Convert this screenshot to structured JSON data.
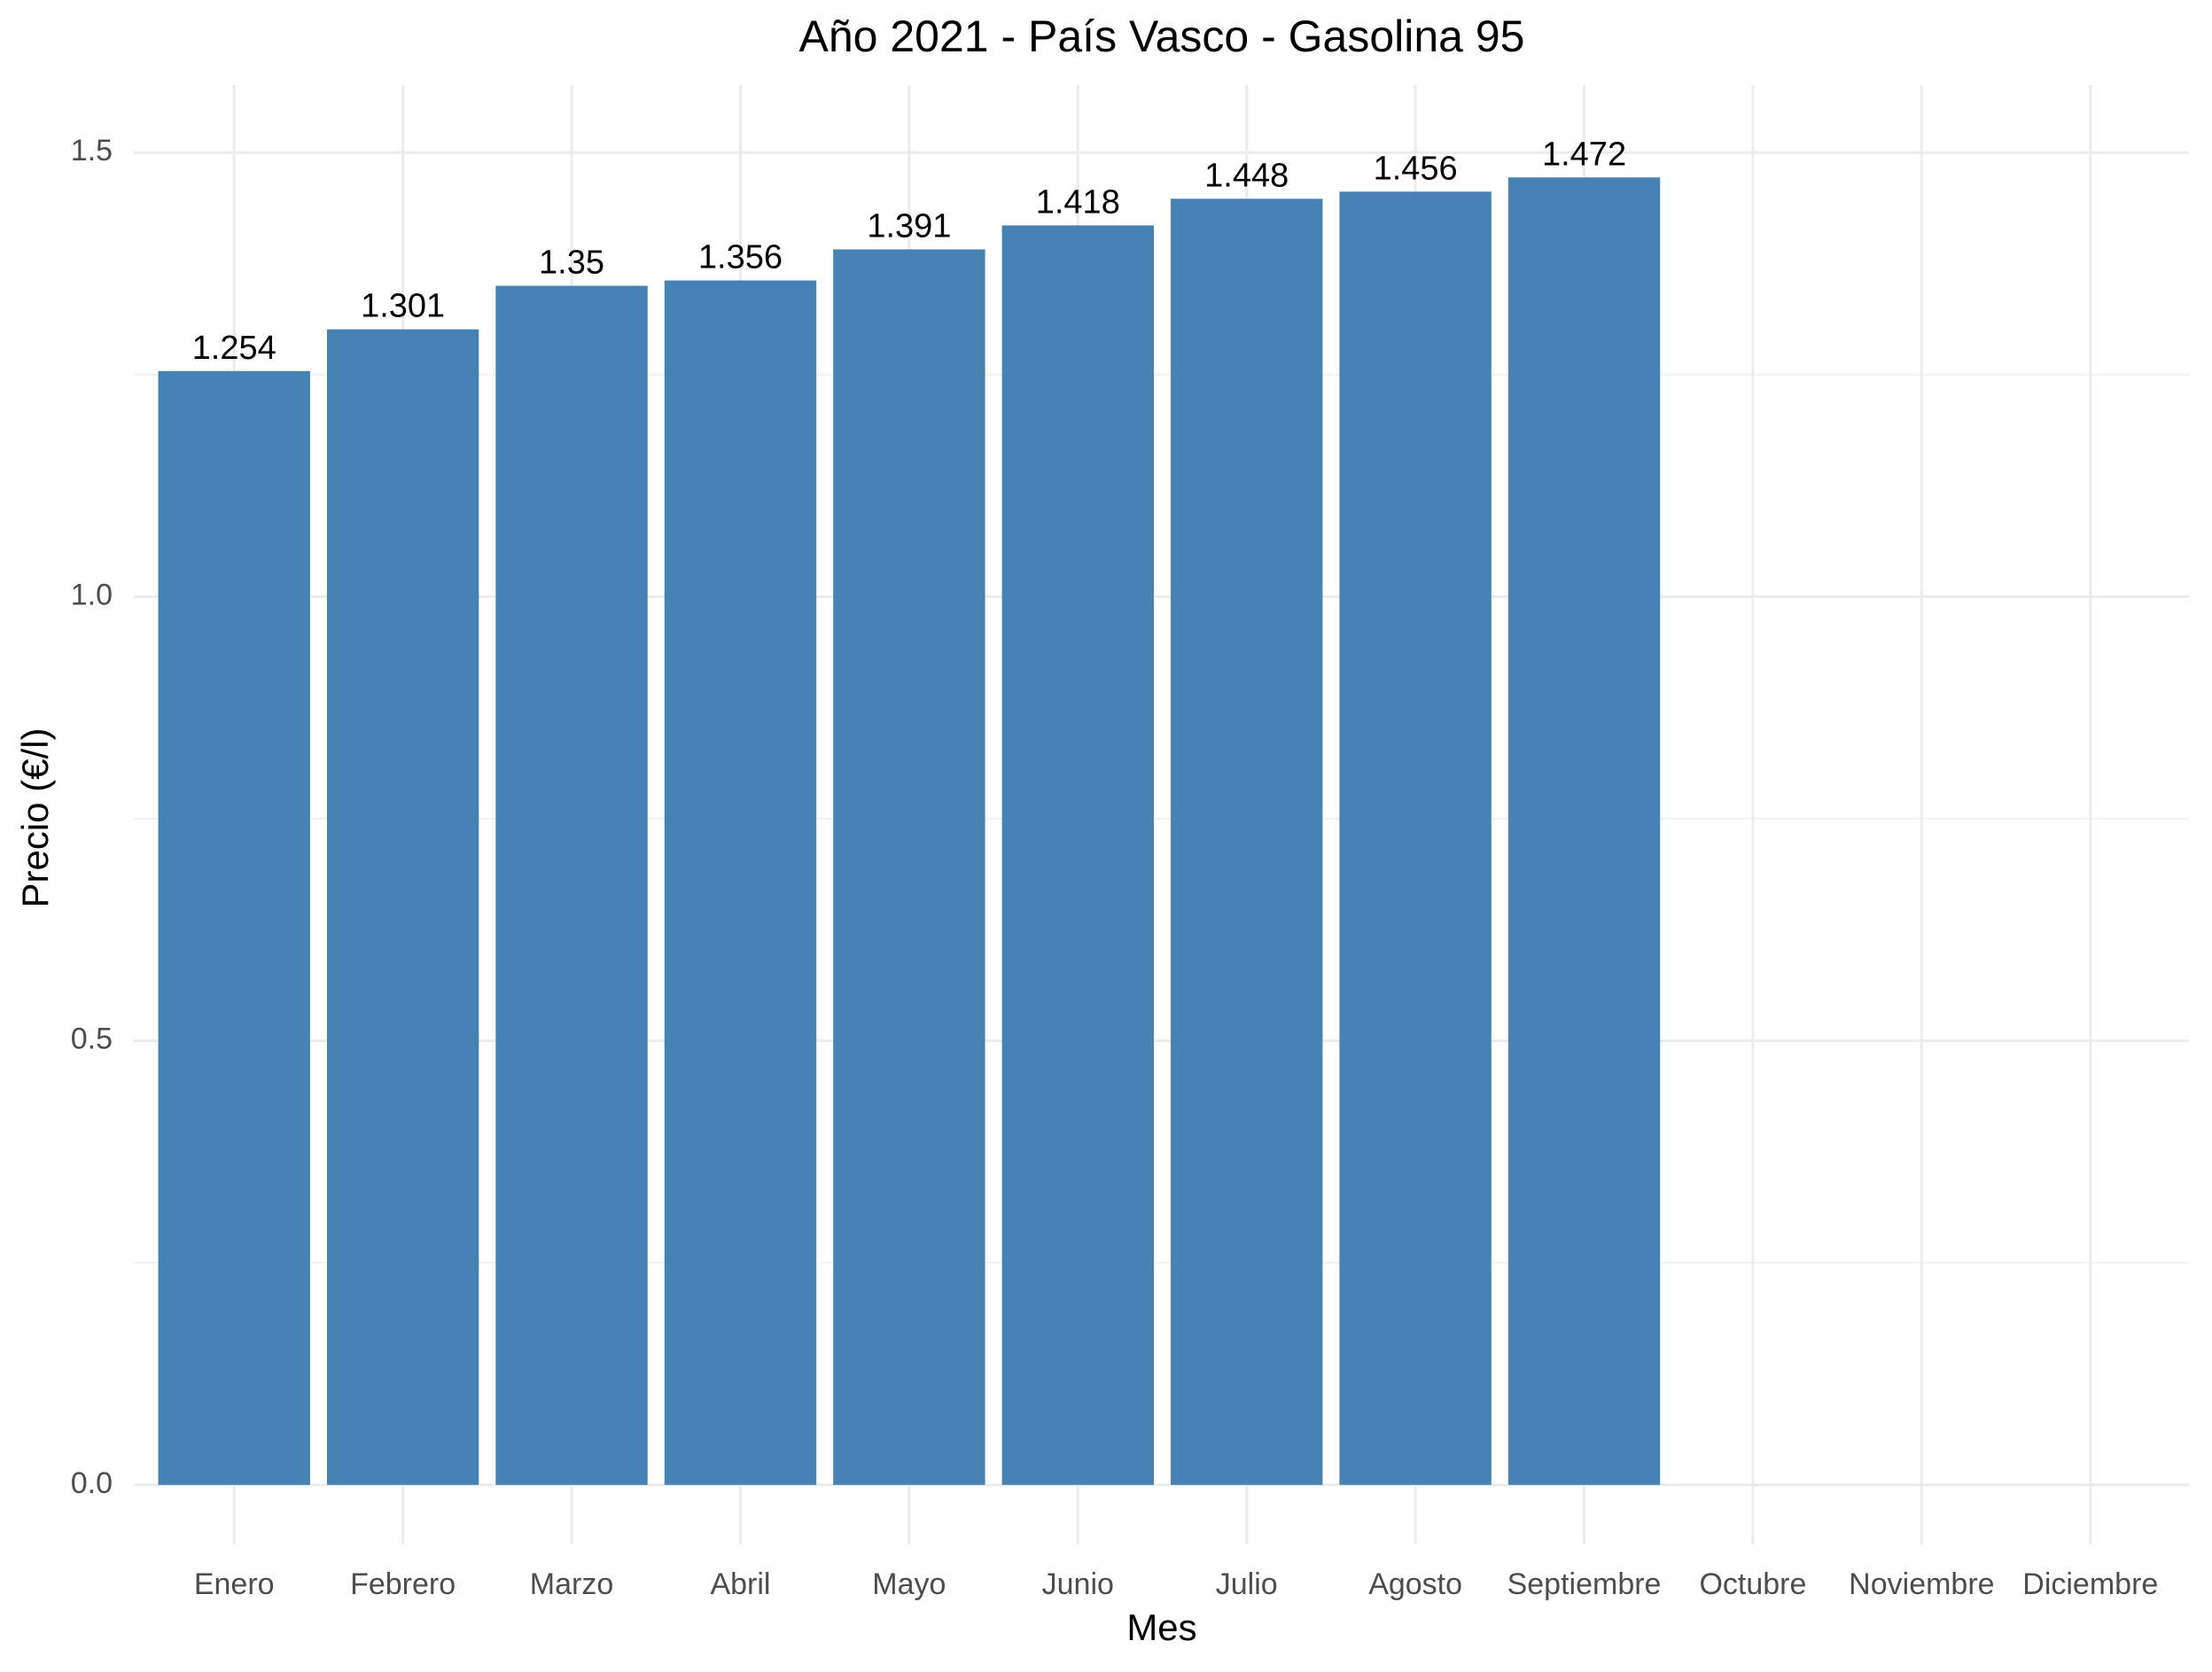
{
  "chart_data": {
    "type": "bar",
    "title": "Año 2021 - País Vasco - Gasolina 95",
    "x_label": "Mes",
    "y_label": "Precio (€/l)",
    "categories": [
      "Enero",
      "Febrero",
      "Marzo",
      "Abril",
      "Mayo",
      "Junio",
      "Julio",
      "Agosto",
      "Septiembre",
      "Octubre",
      "Noviembre",
      "Diciembre"
    ],
    "values": [
      1.254,
      1.301,
      1.35,
      1.356,
      1.391,
      1.418,
      1.448,
      1.456,
      1.472,
      null,
      null,
      null
    ],
    "color": "#4682b4",
    "ylim": [
      -0.067,
      1.576
    ],
    "yticks": [
      {
        "value": 0,
        "label": "0.0"
      },
      0.5,
      {
        "value": 1,
        "label": "1.0"
      },
      1.5
    ],
    "grid": true
  }
}
